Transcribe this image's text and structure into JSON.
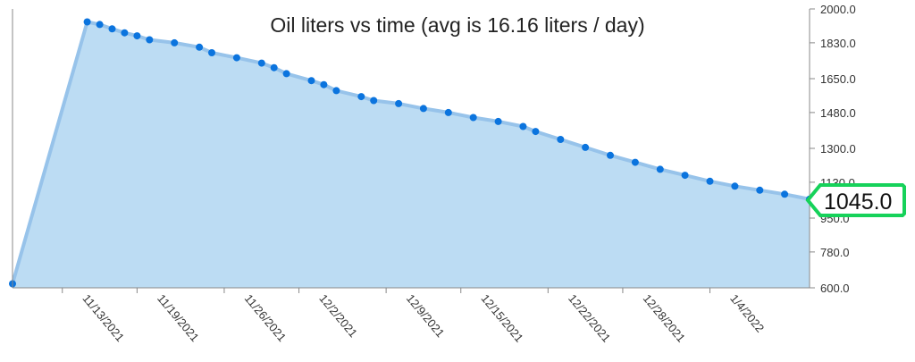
{
  "chart_data": {
    "type": "area",
    "title": "Oil liters vs time (avg is 16.16 liters / day)",
    "xlabel": "",
    "ylabel": "",
    "x_range": [
      "2021-11-09",
      "2022-01-12"
    ],
    "ylim": [
      600,
      2000
    ],
    "y_ticks": [
      "600.0",
      "780.0",
      "950.0",
      "1130.0",
      "1300.0",
      "1480.0",
      "1650.0",
      "1830.0",
      "2000.0"
    ],
    "x_ticks": [
      {
        "date": "2021-11-13",
        "label": "11/13/2021"
      },
      {
        "date": "2021-11-19",
        "label": "11/19/2021"
      },
      {
        "date": "2021-11-26",
        "label": "11/26/2021"
      },
      {
        "date": "2021-12-02",
        "label": "12/2/2021"
      },
      {
        "date": "2021-12-09",
        "label": "12/9/2021"
      },
      {
        "date": "2021-12-15",
        "label": "12/15/2021"
      },
      {
        "date": "2021-12-22",
        "label": "12/22/2021"
      },
      {
        "date": "2021-12-28",
        "label": "12/28/2021"
      },
      {
        "date": "2022-01-04",
        "label": "1/4/2022"
      }
    ],
    "current_value_label": "1045.0",
    "series": [
      {
        "x": [
          "2021-11-09",
          "2021-11-15",
          "2021-11-16",
          "2021-11-17",
          "2021-11-18",
          "2021-11-19",
          "2021-11-20",
          "2021-11-22",
          "2021-11-24",
          "2021-11-25",
          "2021-11-27",
          "2021-11-29",
          "2021-11-30",
          "2021-12-01",
          "2021-12-03",
          "2021-12-04",
          "2021-12-05",
          "2021-12-07",
          "2021-12-08",
          "2021-12-10",
          "2021-12-12",
          "2021-12-14",
          "2021-12-16",
          "2021-12-18",
          "2021-12-20",
          "2021-12-21",
          "2021-12-23",
          "2021-12-25",
          "2021-12-27",
          "2021-12-29",
          "2021-12-31",
          "2022-01-02",
          "2022-01-04",
          "2022-01-06",
          "2022-01-08",
          "2022-01-10",
          "2022-01-12"
        ],
        "values": [
          620,
          1935,
          1922,
          1900,
          1880,
          1865,
          1845,
          1830,
          1808,
          1780,
          1755,
          1728,
          1705,
          1675,
          1640,
          1620,
          1590,
          1560,
          1540,
          1525,
          1500,
          1480,
          1455,
          1435,
          1410,
          1385,
          1345,
          1305,
          1265,
          1230,
          1195,
          1165,
          1135,
          1110,
          1090,
          1070,
          1045
        ]
      }
    ],
    "colors": {
      "area_fill": "#bcdcf3",
      "line": "#97c3ea",
      "points": "#0b74de",
      "badge_border": "#16d25a",
      "axis": "#888888"
    }
  }
}
